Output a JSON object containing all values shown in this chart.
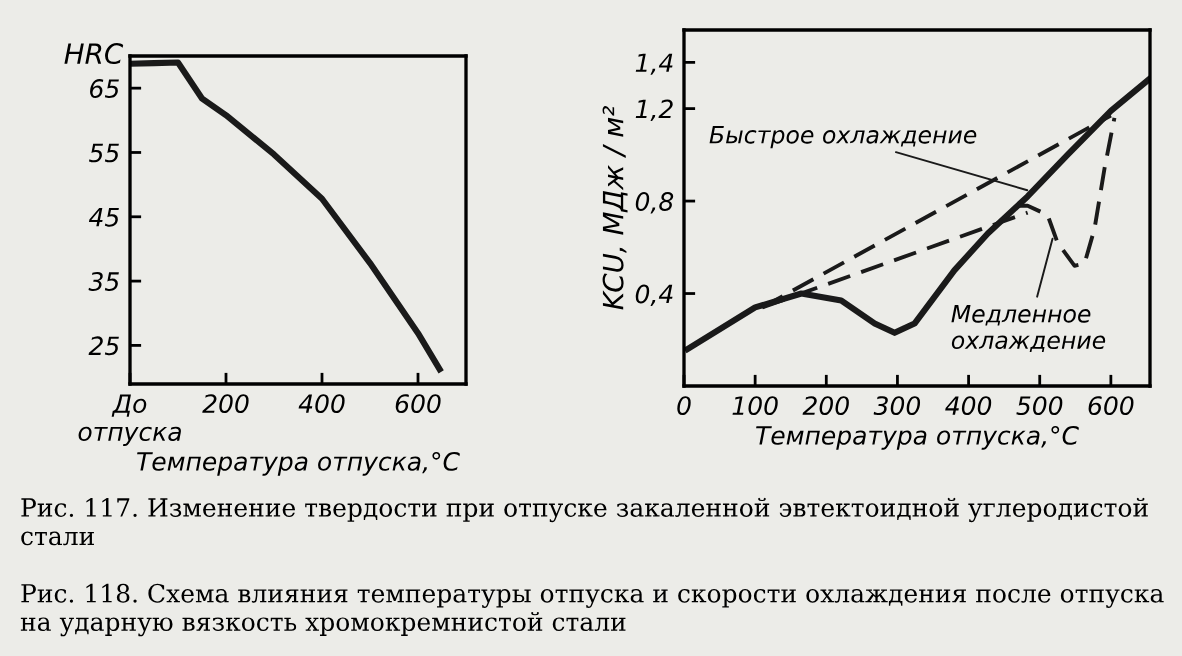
{
  "chart_data": [
    {
      "type": "line",
      "ylabel": "HRC",
      "xlabel": "Температура отпуска,°C",
      "xlim": [
        0,
        700
      ],
      "xticks": [
        {
          "value": 0,
          "label": "До\nотпуска"
        },
        200,
        400,
        600
      ],
      "ylim": [
        19,
        70
      ],
      "yticks": [
        25,
        35,
        45,
        55,
        65
      ],
      "grid": false,
      "legend": false,
      "marker": "none",
      "line_style": "solid",
      "series": [
        {
          "color": "#1a1a1a",
          "x": [
            0,
            50,
            100,
            150,
            200,
            300,
            400,
            500,
            600,
            645
          ],
          "values": [
            68.8,
            68.9,
            69,
            63.4,
            60.8,
            54.7,
            47.8,
            37.8,
            26.9,
            21.3
          ]
        }
      ],
      "annotations": [
        "Рис. 117. Изменение твердости при отпуске закаленной эвтектоидной углеродистой стали"
      ]
    },
    {
      "type": "line",
      "ylabel": "KCU, МДж / м²",
      "xlabel": "Температура отпуска,°C",
      "xlim": [
        0,
        655
      ],
      "xticks": [
        0,
        100,
        200,
        300,
        400,
        500,
        600
      ],
      "ylim": [
        0,
        1.54
      ],
      "yticks": [
        {
          "value": 0.4,
          "label": "0,4"
        },
        {
          "value": 0.8,
          "label": "0,8"
        },
        {
          "value": 1.2,
          "label": "1,2"
        },
        {
          "value": 1.4,
          "label": "1,4"
        }
      ],
      "grid": false,
      "legend": false,
      "marker": "none",
      "series": [
        {
          "color": "#1a1a1a",
          "line_style": "solid",
          "x": [
            5,
            100,
            165,
            221,
            268,
            296,
            324,
            380,
            427,
            483,
            539,
            600,
            655
          ],
          "values": [
            0.16,
            0.34,
            0.4,
            0.37,
            0.27,
            0.23,
            0.27,
            0.5,
            0.66,
            0.82,
            1.0,
            1.19,
            1.33
          ]
        },
        {
          "color": "#1a1a1a",
          "line_style": "dashed",
          "x": [
            470,
            483,
            511,
            525,
            549,
            563,
            577,
            591,
            605
          ],
          "values": [
            0.78,
            0.78,
            0.74,
            0.62,
            0.52,
            0.53,
            0.68,
            0.94,
            1.16
          ]
        },
        {
          "color": "#1a1a1a",
          "line_style": "dashed",
          "x": [
            110,
            600
          ],
          "values": [
            0.34,
            1.17
          ]
        },
        {
          "color": "#1a1a1a",
          "line_style": "dashed",
          "x": [
            110,
            483
          ],
          "values": [
            0.34,
            0.75
          ]
        }
      ],
      "annotations": [
        {
          "text": "Быстрое охлаждение",
          "x": 490,
          "y": 0.84
        },
        {
          "text": "Медленное\nохлаждение",
          "x": 520,
          "y": 0.66
        },
        "Рис. 118. Схема влияния температуры отпуска и скорости охлаждения после отпуска на ударную вязкость хромокремнистой стали"
      ]
    }
  ]
}
